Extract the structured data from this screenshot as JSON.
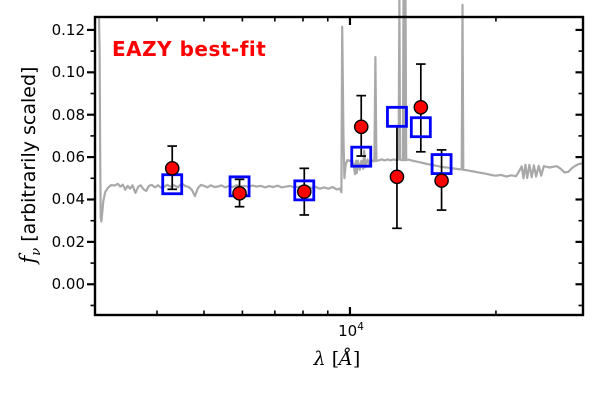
{
  "figure": {
    "annotation": {
      "text": "EAZY best-fit",
      "color": "#ff0000"
    },
    "y_axis": {
      "label": {
        "symbol": "f",
        "subscript": "ν",
        "rest": " [arbitrarily scaled]"
      }
    },
    "x_axis": {
      "label": {
        "symbol": "λ",
        "open": " [",
        "angstrom": "Å",
        "close": "]"
      },
      "major_tick_base": "10",
      "major_tick_exponent": "4"
    }
  },
  "colors": {
    "spectrum": "#a9a9a9",
    "observed": "#ff0000",
    "model": "#0000ff",
    "frame": "#000000",
    "errorbar": "#000000"
  },
  "chart_data": {
    "type": "line+scatter",
    "title": "",
    "xlabel": "lambda [Angstrom]",
    "ylabel": "f_nu [arbitrarily scaled]",
    "x_scale": "log",
    "xlim": [
      2980,
      30240
    ],
    "ylim": [
      -0.0145,
      0.1261
    ],
    "grid": false,
    "y_ticks": [
      {
        "label": "0.12",
        "value": 0.12
      },
      {
        "label": "0.10",
        "value": 0.1
      },
      {
        "label": "0.08",
        "value": 0.08
      },
      {
        "label": "0.06",
        "value": 0.06
      },
      {
        "label": "0.04",
        "value": 0.04
      },
      {
        "label": "0.02",
        "value": 0.02
      },
      {
        "label": "0.00",
        "value": 0.0
      }
    ],
    "y_minor_ticks": [
      -0.01,
      0.01,
      0.03,
      0.05,
      0.07,
      0.09,
      0.11
    ],
    "x_major_ticks": [
      10000
    ],
    "x_minor_ticks": [
      4000,
      5000,
      6000,
      7000,
      8000,
      9000,
      20000
    ],
    "series": [
      {
        "name": "model-spectrum",
        "type": "line",
        "points": [
          [
            3037,
            0.1261
          ],
          [
            3046,
            0.11
          ],
          [
            3055,
            0.06
          ],
          [
            3062,
            0.0315
          ],
          [
            3072,
            0.0296
          ],
          [
            3082,
            0.033
          ],
          [
            3100,
            0.0392
          ],
          [
            3130,
            0.0436
          ],
          [
            3170,
            0.0455
          ],
          [
            3215,
            0.0468
          ],
          [
            3270,
            0.0466
          ],
          [
            3320,
            0.0474
          ],
          [
            3360,
            0.0461
          ],
          [
            3400,
            0.047
          ],
          [
            3440,
            0.0446
          ],
          [
            3480,
            0.0464
          ],
          [
            3520,
            0.0451
          ],
          [
            3560,
            0.0467
          ],
          [
            3610,
            0.0431
          ],
          [
            3660,
            0.0461
          ],
          [
            3700,
            0.0467
          ],
          [
            3750,
            0.0449
          ],
          [
            3800,
            0.044
          ],
          [
            3850,
            0.0464
          ],
          [
            3900,
            0.0469
          ],
          [
            3960,
            0.0457
          ],
          [
            4020,
            0.0467
          ],
          [
            4080,
            0.0455
          ],
          [
            4140,
            0.0461
          ],
          [
            4200,
            0.0469
          ],
          [
            4270,
            0.0461
          ],
          [
            4340,
            0.0467
          ],
          [
            4420,
            0.0457
          ],
          [
            4500,
            0.0477
          ],
          [
            4570,
            0.0464
          ],
          [
            4650,
            0.0459
          ],
          [
            4720,
            0.0446
          ],
          [
            4790,
            0.0416
          ],
          [
            4860,
            0.0454
          ],
          [
            4930,
            0.0469
          ],
          [
            5000,
            0.0464
          ],
          [
            5080,
            0.0457
          ],
          [
            5160,
            0.0467
          ],
          [
            5250,
            0.0459
          ],
          [
            5340,
            0.0461
          ],
          [
            5430,
            0.0467
          ],
          [
            5530,
            0.0457
          ],
          [
            5630,
            0.0464
          ],
          [
            5730,
            0.0459
          ],
          [
            5840,
            0.0467
          ],
          [
            5950,
            0.0461
          ],
          [
            6060,
            0.0464
          ],
          [
            6180,
            0.0459
          ],
          [
            6300,
            0.0466
          ],
          [
            6420,
            0.0461
          ],
          [
            6550,
            0.0464
          ],
          [
            6680,
            0.0457
          ],
          [
            6810,
            0.0463
          ],
          [
            6950,
            0.0459
          ],
          [
            7090,
            0.0465
          ],
          [
            7230,
            0.0457
          ],
          [
            7380,
            0.0461
          ],
          [
            7530,
            0.0464
          ],
          [
            7680,
            0.0457
          ],
          [
            7840,
            0.0461
          ],
          [
            8000,
            0.0454
          ],
          [
            8160,
            0.0461
          ],
          [
            8330,
            0.0454
          ],
          [
            8500,
            0.0459
          ],
          [
            8670,
            0.0451
          ],
          [
            8850,
            0.0457
          ],
          [
            9030,
            0.0451
          ],
          [
            9210,
            0.0459
          ],
          [
            9400,
            0.0447
          ],
          [
            9540,
            0.0452
          ],
          [
            9600,
            0.0434
          ],
          [
            9640,
            0.1215
          ],
          [
            9700,
            0.068
          ],
          [
            9740,
            0.05
          ],
          [
            9800,
            0.0566
          ],
          [
            9880,
            0.0586
          ],
          [
            9990,
            0.0582
          ],
          [
            10090,
            0.0588
          ],
          [
            10180,
            0.0565
          ],
          [
            10240,
            0.052
          ],
          [
            10290,
            0.0583
          ],
          [
            10330,
            0.0524
          ],
          [
            10390,
            0.0583
          ],
          [
            10480,
            0.054
          ],
          [
            10560,
            0.0583
          ],
          [
            10650,
            0.0545
          ],
          [
            10700,
            0.063
          ],
          [
            10760,
            0.0552
          ],
          [
            10870,
            0.0588
          ],
          [
            11000,
            0.0561
          ],
          [
            11090,
            0.0585
          ],
          [
            11230,
            0.058
          ],
          [
            11285,
            0.1072
          ],
          [
            11340,
            0.0582
          ],
          [
            11480,
            0.0585
          ],
          [
            11630,
            0.0589
          ],
          [
            11790,
            0.0584
          ],
          [
            11950,
            0.0589
          ],
          [
            12120,
            0.0585
          ],
          [
            12290,
            0.0589
          ],
          [
            12460,
            0.0586
          ],
          [
            12600,
            0.0588
          ],
          [
            12645,
            0.1355
          ],
          [
            12690,
            0.0588
          ],
          [
            12780,
            0.0586
          ],
          [
            12860,
            0.0586
          ],
          [
            12895,
            0.1355
          ],
          [
            12930,
            0.0586
          ],
          [
            12985,
            0.0586
          ],
          [
            13020,
            0.1355
          ],
          [
            13060,
            0.0586
          ],
          [
            13200,
            0.0588
          ],
          [
            13400,
            0.0584
          ],
          [
            13650,
            0.058
          ],
          [
            13900,
            0.0576
          ],
          [
            14150,
            0.0572
          ],
          [
            14400,
            0.0568
          ],
          [
            14700,
            0.0564
          ],
          [
            15000,
            0.056
          ],
          [
            15300,
            0.0556
          ],
          [
            15600,
            0.0553
          ],
          [
            15950,
            0.055
          ],
          [
            16300,
            0.0547
          ],
          [
            16650,
            0.0544
          ],
          [
            16900,
            0.0542
          ],
          [
            17000,
            0.0542
          ],
          [
            17065,
            0.1318
          ],
          [
            17130,
            0.054
          ],
          [
            17400,
            0.0538
          ],
          [
            17700,
            0.0535
          ],
          [
            18000,
            0.0532
          ],
          [
            18400,
            0.0528
          ],
          [
            18800,
            0.0524
          ],
          [
            19200,
            0.052
          ],
          [
            19600,
            0.0515
          ],
          [
            20000,
            0.0512
          ],
          [
            20500,
            0.0516
          ],
          [
            21000,
            0.0508
          ],
          [
            21500,
            0.0514
          ],
          [
            22000,
            0.051
          ],
          [
            22300,
            0.0532
          ],
          [
            22600,
            0.0556
          ],
          [
            22800,
            0.05
          ],
          [
            23000,
            0.0563
          ],
          [
            23200,
            0.0502
          ],
          [
            23450,
            0.0563
          ],
          [
            23700,
            0.0505
          ],
          [
            23950,
            0.0561
          ],
          [
            24200,
            0.0508
          ],
          [
            24500,
            0.0559
          ],
          [
            24800,
            0.0512
          ],
          [
            25100,
            0.0557
          ],
          [
            25450,
            0.0554
          ],
          [
            25800,
            0.0551
          ],
          [
            26200,
            0.0554
          ],
          [
            26700,
            0.0557
          ],
          [
            27200,
            0.0545
          ],
          [
            27700,
            0.0528
          ],
          [
            28200,
            0.053
          ],
          [
            28700,
            0.0548
          ],
          [
            29200,
            0.056
          ],
          [
            29700,
            0.0568
          ],
          [
            30100,
            0.057
          ]
        ]
      },
      {
        "name": "model-photometry",
        "type": "scatter",
        "marker": "open-square",
        "x": [
          4300,
          5920,
          8050,
          10550,
          12500,
          14000,
          15450
        ],
        "y": [
          0.0472,
          0.0462,
          0.0443,
          0.0602,
          0.079,
          0.0741,
          0.0567
        ]
      },
      {
        "name": "observed-photometry",
        "type": "scatter",
        "marker": "filled-circle",
        "x": [
          4300,
          5920,
          8050,
          10550,
          12500,
          14000,
          15450
        ],
        "y": [
          0.0547,
          0.0429,
          0.0437,
          0.0743,
          0.0507,
          0.0835,
          0.0489
        ],
        "err_hi": [
          0.0652,
          0.0495,
          0.0547,
          0.089,
          0.0747,
          0.1039,
          0.0634
        ],
        "err_lo": [
          0.0448,
          0.0366,
          0.0327,
          0.0605,
          0.0264,
          0.0625,
          0.035
        ]
      }
    ]
  }
}
